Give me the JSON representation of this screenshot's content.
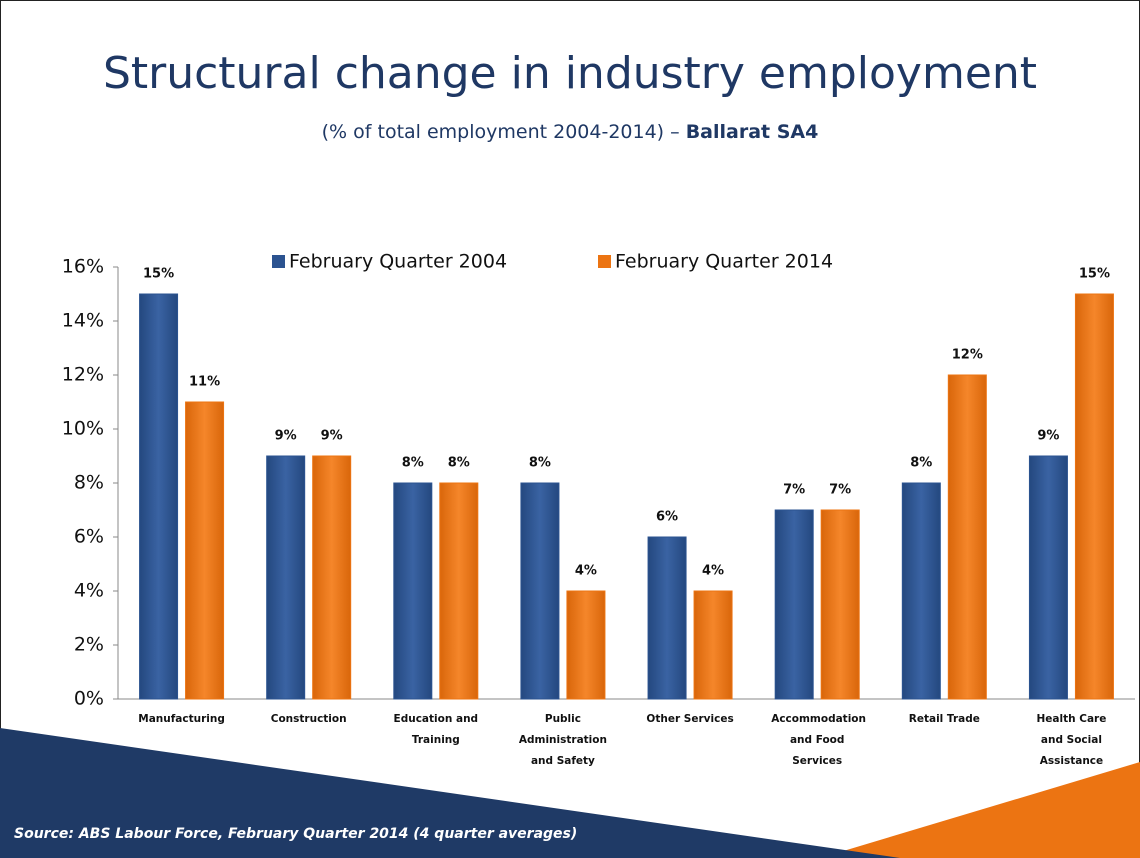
{
  "chart_data": {
    "type": "bar",
    "title": "Structural change in industry employment",
    "subtitle": "(% of total employment 2004-2014) –",
    "subtitle_emphasis": "Ballarat SA4",
    "source": "Source: ABS Labour Force, February Quarter 2014 (4 quarter averages)",
    "categories": [
      "Manufacturing",
      "Construction",
      "Education and Training",
      "Public Administration and Safety",
      "Other Services",
      "Accommodation and Food Services",
      "Retail Trade",
      "Health Care and Social Assistance"
    ],
    "series": [
      {
        "name": "February Quarter 2004",
        "color": "#2b5390",
        "values": [
          15,
          9,
          8,
          8,
          6,
          7,
          8,
          9
        ],
        "value_labels": [
          "15%",
          "9%",
          "8%",
          "8%",
          "6%",
          "7%",
          "8%",
          "9%"
        ]
      },
      {
        "name": "February Quarter 2014",
        "color": "#ec7412",
        "values": [
          11,
          9,
          8,
          4,
          4,
          7,
          12,
          15
        ],
        "value_labels": [
          "11%",
          "9%",
          "8%",
          "4%",
          "4%",
          "7%",
          "12%",
          "15%"
        ]
      }
    ],
    "ylim": [
      0,
      16
    ],
    "yticks": [
      {
        "value": 0,
        "label": "0%"
      },
      {
        "value": 2,
        "label": "2%"
      },
      {
        "value": 4,
        "label": "4%"
      },
      {
        "value": 6,
        "label": "6%"
      },
      {
        "value": 8,
        "label": "8%"
      },
      {
        "value": 10,
        "label": "10%"
      },
      {
        "value": 12,
        "label": "12%"
      },
      {
        "value": 14,
        "label": "14%"
      },
      {
        "value": 16,
        "label": "16%"
      }
    ],
    "legend": "top",
    "grid": false
  }
}
